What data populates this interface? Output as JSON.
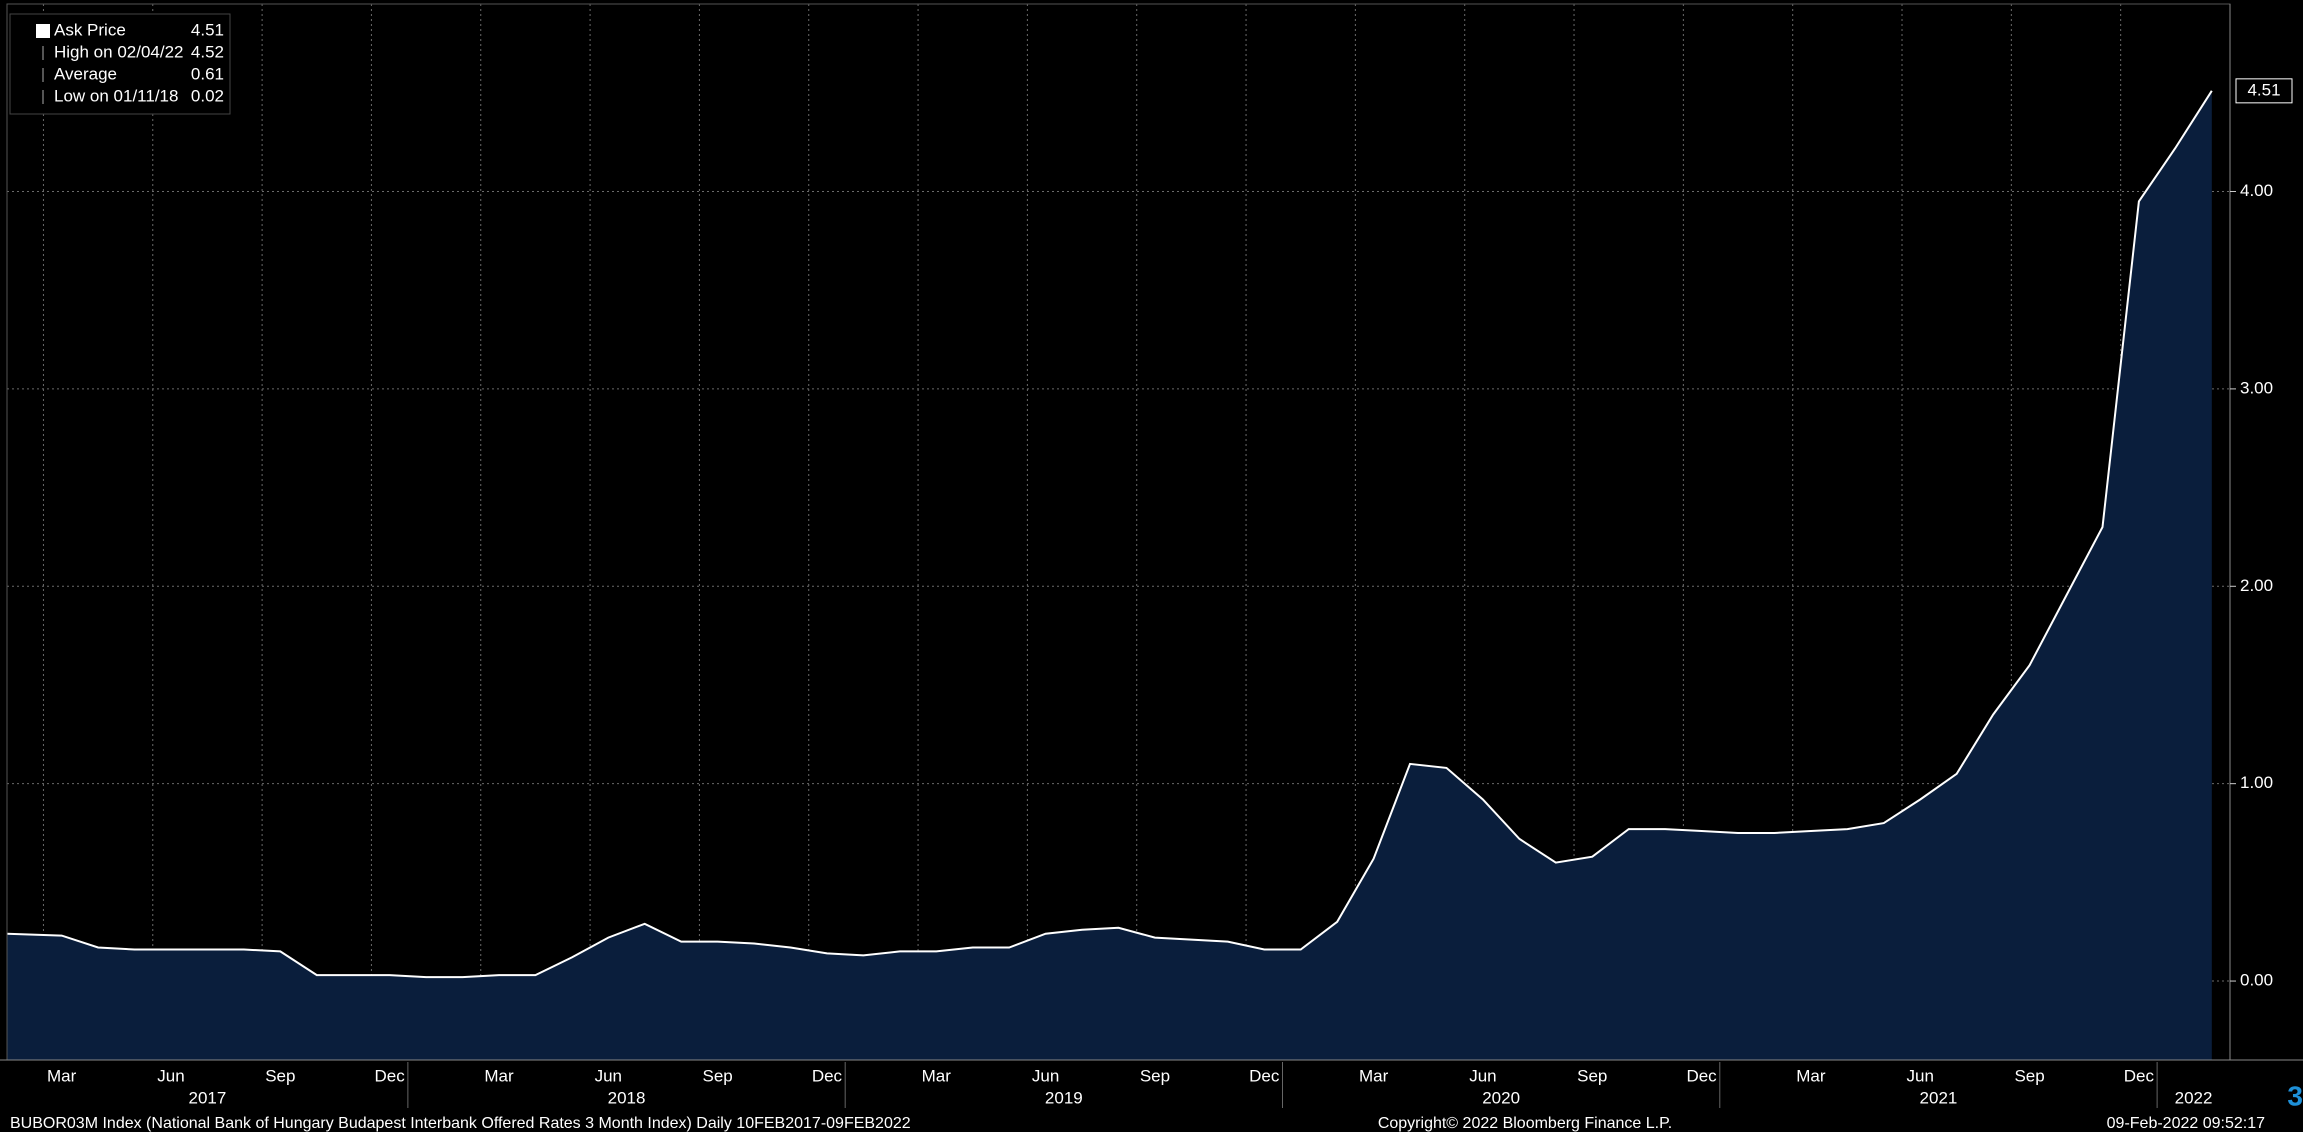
{
  "chart_data": {
    "type": "area",
    "legend": [
      {
        "name": "Ask Price",
        "value": 4.51
      },
      {
        "name": "High on 02/04/22",
        "value": 4.52
      },
      {
        "name": "Average",
        "value": 0.61
      },
      {
        "name": "Low on 01/11/18",
        "value": 0.02
      }
    ],
    "x": [
      "2017-02",
      "2017-03",
      "2017-04",
      "2017-05",
      "2017-06",
      "2017-07",
      "2017-08",
      "2017-09",
      "2017-10",
      "2017-11",
      "2017-12",
      "2018-01",
      "2018-02",
      "2018-03",
      "2018-04",
      "2018-05",
      "2018-06",
      "2018-07",
      "2018-08",
      "2018-09",
      "2018-10",
      "2018-11",
      "2018-12",
      "2019-01",
      "2019-02",
      "2019-03",
      "2019-04",
      "2019-05",
      "2019-06",
      "2019-07",
      "2019-08",
      "2019-09",
      "2019-10",
      "2019-11",
      "2019-12",
      "2020-01",
      "2020-02",
      "2020-03",
      "2020-04",
      "2020-05",
      "2020-06",
      "2020-07",
      "2020-08",
      "2020-09",
      "2020-10",
      "2020-11",
      "2020-12",
      "2021-01",
      "2021-02",
      "2021-03",
      "2021-04",
      "2021-05",
      "2021-06",
      "2021-07",
      "2021-08",
      "2021-09",
      "2021-10",
      "2021-11",
      "2021-12",
      "2022-01",
      "2022-02"
    ],
    "series": [
      {
        "name": "Ask Price",
        "color": "#ffffff",
        "fill": "#0a1e3c",
        "values": [
          0.24,
          0.23,
          0.17,
          0.16,
          0.16,
          0.16,
          0.16,
          0.15,
          0.03,
          0.03,
          0.03,
          0.02,
          0.02,
          0.03,
          0.03,
          0.12,
          0.22,
          0.29,
          0.2,
          0.2,
          0.19,
          0.17,
          0.14,
          0.13,
          0.15,
          0.15,
          0.17,
          0.17,
          0.24,
          0.26,
          0.27,
          0.22,
          0.21,
          0.2,
          0.16,
          0.16,
          0.3,
          0.62,
          1.1,
          1.08,
          0.92,
          0.72,
          0.6,
          0.63,
          0.77,
          0.77,
          0.76,
          0.75,
          0.75,
          0.76,
          0.77,
          0.8,
          0.92,
          1.05,
          1.35,
          1.6,
          1.95,
          2.3,
          3.95,
          4.22,
          4.51
        ]
      }
    ],
    "xlim": [
      "2017-02",
      "2022-03"
    ],
    "xticks": [
      {
        "value": "2017-03",
        "label": "Mar"
      },
      {
        "value": "2017-06",
        "label": "Jun"
      },
      {
        "value": "2017-09",
        "label": "Sep"
      },
      {
        "value": "2017-12",
        "label": "Dec"
      },
      {
        "value": "2018-03",
        "label": "Mar"
      },
      {
        "value": "2018-06",
        "label": "Jun"
      },
      {
        "value": "2018-09",
        "label": "Sep"
      },
      {
        "value": "2018-12",
        "label": "Dec"
      },
      {
        "value": "2019-03",
        "label": "Mar"
      },
      {
        "value": "2019-06",
        "label": "Jun"
      },
      {
        "value": "2019-09",
        "label": "Sep"
      },
      {
        "value": "2019-12",
        "label": "Dec"
      },
      {
        "value": "2020-03",
        "label": "Mar"
      },
      {
        "value": "2020-06",
        "label": "Jun"
      },
      {
        "value": "2020-09",
        "label": "Sep"
      },
      {
        "value": "2020-12",
        "label": "Dec"
      },
      {
        "value": "2021-03",
        "label": "Mar"
      },
      {
        "value": "2021-06",
        "label": "Jun"
      },
      {
        "value": "2021-09",
        "label": "Sep"
      },
      {
        "value": "2021-12",
        "label": "Dec"
      }
    ],
    "years": [
      "2017",
      "2018",
      "2019",
      "2020",
      "2021",
      "2022"
    ],
    "ylim": [
      -0.4,
      4.95
    ],
    "yticks": [
      {
        "value": 0,
        "label": "0.00"
      },
      {
        "value": 1,
        "label": "1.00"
      },
      {
        "value": 2,
        "label": "2.00"
      },
      {
        "value": 3,
        "label": "3.00"
      },
      {
        "value": 4,
        "label": "4.00"
      }
    ],
    "grid": true,
    "footer_left": "BUBOR03M Index (National Bank of Hungary Budapest Interbank Offered Rates 3 Month Index)  Daily 10FEB2017-09FEB2022",
    "footer_center": "Copyright© 2022 Bloomberg Finance L.P.",
    "footer_right": "09-Feb-2022 09:52:17",
    "corner_mark": "3"
  }
}
